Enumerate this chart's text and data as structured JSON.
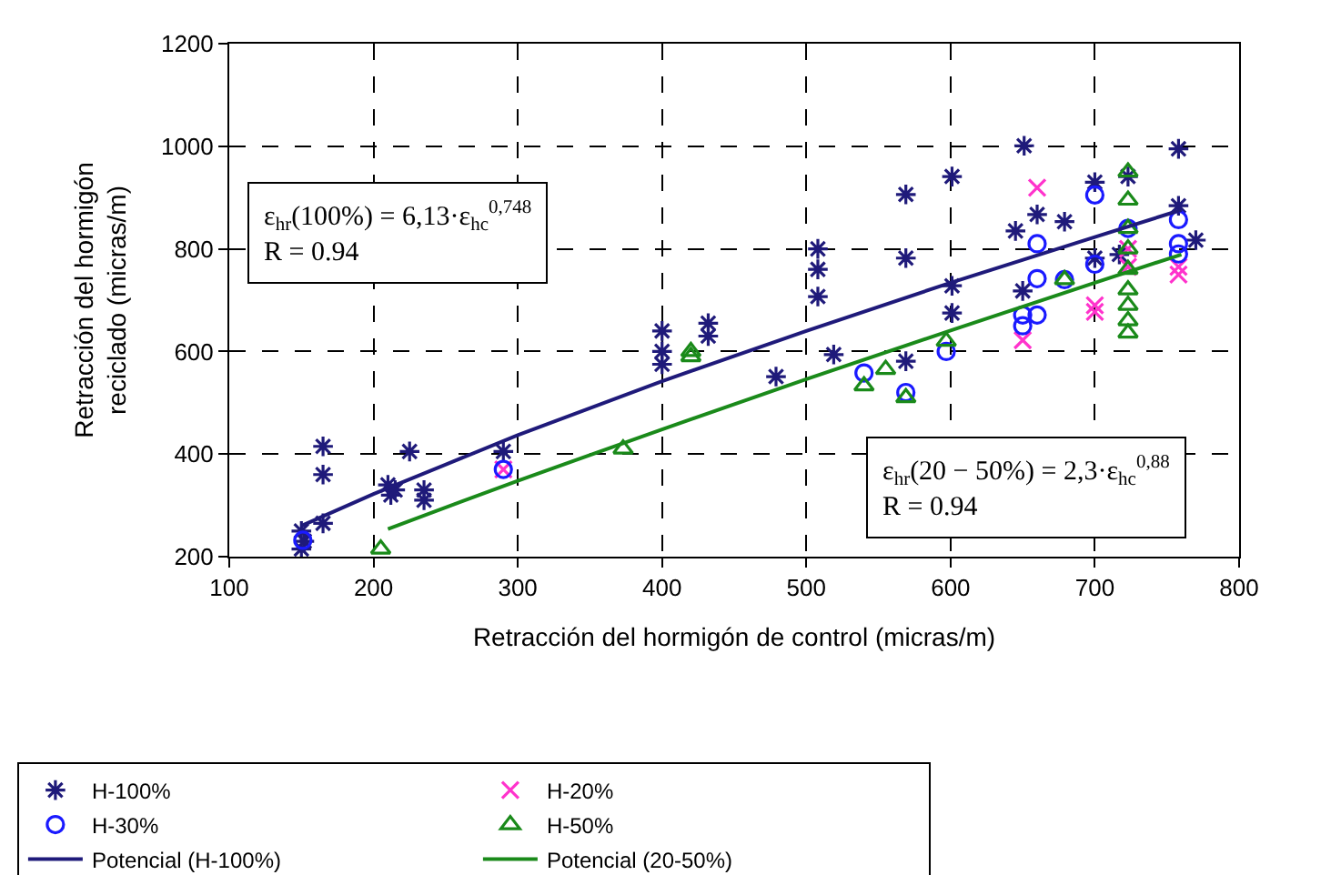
{
  "chart_data": {
    "type": "scatter",
    "xlabel": "Retracción del hormigón de control (micras/m)",
    "ylabel": "Retracción del hormigón\nreciclado (micras/m)",
    "xlim": [
      100,
      800
    ],
    "xticks": [
      100,
      200,
      300,
      400,
      500,
      600,
      700,
      800
    ],
    "ylim": [
      200,
      1200
    ],
    "yticks": [
      200,
      400,
      600,
      800,
      1000,
      1200
    ],
    "grid": true,
    "legend": "bottom",
    "annotations": [
      "ε$_{hr}$(100%) = 6,13·ε$_{hc}$$^{0,748}$\nR = 0.94",
      "ε$_{hr}$(20 − 50%) = 2,3·ε$_{hc}$$^{0,88}$\nR = 0.94"
    ],
    "series": [
      {
        "name": "H-100%",
        "color": "#1f1a7a",
        "marker": "cross",
        "x": [
          150,
          150,
          152,
          165,
          165,
          165,
          210,
          212,
          215,
          225,
          235,
          235,
          290,
          400,
          400,
          400,
          432,
          432,
          479,
          508,
          508,
          508,
          519,
          569,
          569,
          569,
          601,
          601,
          601,
          645,
          651,
          660,
          679,
          700,
          700,
          717,
          723,
          758,
          758,
          770,
          650
        ],
        "values": [
          250,
          215,
          230,
          415,
          360,
          265,
          340,
          320,
          330,
          405,
          330,
          310,
          405,
          640,
          600,
          575,
          655,
          630,
          551,
          800,
          760,
          707,
          594,
          906,
          782,
          581,
          941,
          728,
          675,
          835,
          1001,
          867,
          853,
          930,
          782,
          789,
          941,
          995,
          884,
          817,
          718
        ]
      },
      {
        "name": "H-20%",
        "color": "#ff33cc",
        "x": [
          290,
          660,
          700,
          700,
          650,
          723,
          758,
          758,
          723
        ],
        "values": [
          370,
          919,
          690,
          677,
          622,
          800,
          765,
          750,
          765
        ]
      },
      {
        "name": "H-30%",
        "color": "#1a1aff",
        "marker": "circle",
        "x": [
          151,
          290,
          597,
          540,
          569,
          660,
          660,
          650,
          650,
          660,
          679,
          700,
          700,
          723,
          758,
          758,
          758
        ],
        "values": [
          232,
          370,
          600,
          558,
          520,
          810,
          742,
          671,
          650,
          671,
          740,
          905,
          770,
          840,
          857,
          790,
          810
        ]
      },
      {
        "name": "H-50%",
        "color": "#1a8a1a",
        "marker": "triangle",
        "x": [
          205,
          373,
          420,
          420,
          540,
          555,
          569,
          597,
          679,
          723,
          723,
          723,
          723,
          723,
          723,
          723,
          723,
          723
        ],
        "values": [
          215,
          410,
          600,
          590,
          533,
          565,
          510,
          620,
          740,
          950,
          895,
          840,
          800,
          760,
          720,
          690,
          660,
          636
        ]
      },
      {
        "name": "Potencial (H-100%)",
        "type": "line",
        "color": "#1f1a7a",
        "marker": "none",
        "line_style": "solid",
        "x": [
          150,
          200,
          300,
          400,
          500,
          600,
          700,
          760
        ],
        "values": [
          260,
          322,
          437,
          542,
          640,
          734,
          823,
          876
        ]
      },
      {
        "name": "Potencial (20-50%)",
        "type": "line",
        "color": "#1a8a1a",
        "marker": "none",
        "line_style": "solid",
        "x": [
          210,
          300,
          400,
          500,
          600,
          700,
          760
        ],
        "values": [
          254,
          348,
          448,
          546,
          641,
          734,
          789
        ]
      }
    ]
  }
}
